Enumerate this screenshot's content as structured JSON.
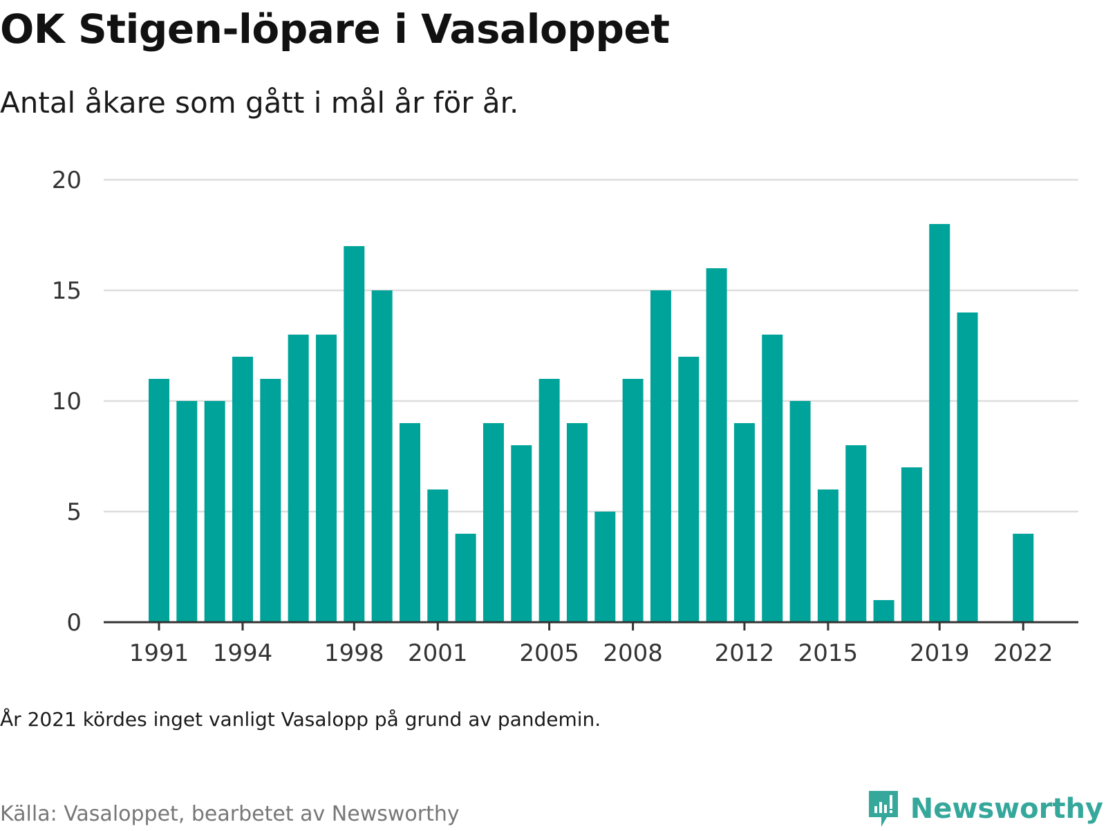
{
  "header": {
    "title": "OK Stigen-löpare i Vasaloppet",
    "subtitle": "Antal åkare som gått i mål år för år."
  },
  "footer": {
    "note": "År 2021 kördes inget vanligt Vasalopp på grund av pandemin.",
    "source": "Källa: Vasaloppet, bearbetet av Newsworthy",
    "brand": "Newsworthy"
  },
  "colors": {
    "bar": "#00a39a",
    "grid": "#dddddd",
    "axis": "#333333",
    "brand": "#35a79b"
  },
  "chart_data": {
    "type": "bar",
    "title": "OK Stigen-löpare i Vasaloppet",
    "subtitle": "Antal åkare som gått i mål år för år.",
    "xlabel": "",
    "ylabel": "",
    "x": [
      1991,
      1992,
      1993,
      1994,
      1995,
      1996,
      1997,
      1998,
      1999,
      2000,
      2001,
      2002,
      2003,
      2004,
      2005,
      2006,
      2007,
      2008,
      2009,
      2010,
      2011,
      2012,
      2013,
      2014,
      2015,
      2016,
      2017,
      2018,
      2019,
      2020,
      2021,
      2022
    ],
    "values": [
      11,
      10,
      10,
      12,
      11,
      13,
      13,
      17,
      15,
      9,
      6,
      4,
      9,
      8,
      11,
      9,
      5,
      11,
      15,
      12,
      16,
      9,
      13,
      10,
      6,
      8,
      1,
      7,
      18,
      14,
      null,
      4
    ],
    "x_ticks": [
      "1991",
      "1994",
      "1998",
      "2001",
      "2005",
      "2008",
      "2012",
      "2015",
      "2019",
      "2022"
    ],
    "y_ticks": [
      "0",
      "5",
      "10",
      "15",
      "20"
    ],
    "ylim": [
      0,
      20
    ],
    "grid": true,
    "legend": "none"
  }
}
